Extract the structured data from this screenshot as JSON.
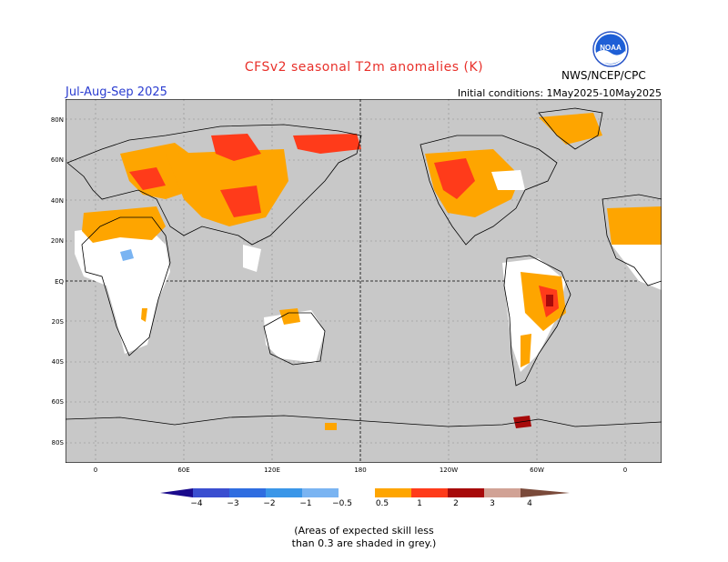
{
  "header": {
    "title": "CFSv2 seasonal T2m anomalies (K)",
    "season": "Jul-Aug-Sep 2025",
    "initial_conditions": "Initial conditions: 1May2025-10May2025",
    "agency": "NWS/NCEP/CPC",
    "logo_text": "NOAA"
  },
  "map": {
    "lat_labels": [
      "80N",
      "60N",
      "40N",
      "20N",
      "EQ",
      "20S",
      "40S",
      "60S",
      "80S"
    ],
    "lon_labels": [
      "0",
      "60E",
      "120E",
      "180",
      "120W",
      "60W",
      "0"
    ],
    "colors": {
      "skill_grey": "#c8c8c8",
      "land_white": "#ffffff",
      "a05_1": "#fea500",
      "a1_2": "#ff3b1a",
      "a2_3": "#a70a0a",
      "a3_4": "#d1a295",
      "b_minus05": "#7ab4f2",
      "b_minus1": "#3a96e8"
    }
  },
  "colorbar": {
    "labels": [
      "−4",
      "−3",
      "−2",
      "−1",
      "−0.5",
      "0.5",
      "1",
      "2",
      "3",
      "4"
    ]
  },
  "footnote": {
    "line1": "(Areas of expected skill less",
    "line2": "than 0.3 are shaded in grey.)"
  }
}
